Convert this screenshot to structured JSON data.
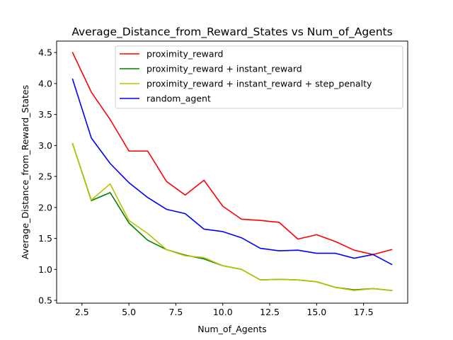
{
  "chart_data": {
    "type": "line",
    "title": "Average_Distance_from_Reward_States vs Num_of_Agents",
    "xlabel": "Num_of_Agents",
    "ylabel": "Average_Distance_from_Reward_States",
    "xlim": [
      1.15,
      19.85
    ],
    "ylim": [
      0.455,
      4.685
    ],
    "x_ticks": [
      2.5,
      5.0,
      7.5,
      10.0,
      12.5,
      15.0,
      17.5
    ],
    "x_tick_labels": [
      "2.5",
      "5.0",
      "7.5",
      "10.0",
      "12.5",
      "15.0",
      "17.5"
    ],
    "y_ticks": [
      0.5,
      1.0,
      1.5,
      2.0,
      2.5,
      3.0,
      3.5,
      4.0,
      4.5
    ],
    "y_tick_labels": [
      "0.5",
      "1.0",
      "1.5",
      "2.0",
      "2.5",
      "3.0",
      "3.5",
      "4.0",
      "4.5"
    ],
    "grid": false,
    "legend_position": "top-right",
    "x": [
      2,
      3,
      4,
      5,
      6,
      7,
      8,
      9,
      10,
      11,
      12,
      13,
      14,
      15,
      16,
      17,
      18,
      19
    ],
    "series": [
      {
        "name": "proximity_reward",
        "color": "#ff0000",
        "values": [
          4.5,
          3.86,
          3.42,
          2.91,
          2.91,
          2.42,
          2.2,
          2.44,
          2.02,
          1.81,
          1.79,
          1.76,
          1.49,
          1.56,
          1.45,
          1.31,
          1.24,
          1.32
        ]
      },
      {
        "name": "proximity_reward + instant_reward",
        "color": "#008000",
        "values": [
          3.03,
          2.11,
          2.24,
          1.75,
          1.47,
          1.32,
          1.23,
          1.17,
          1.06,
          1.0,
          0.83,
          0.84,
          0.83,
          0.8,
          0.71,
          0.67,
          0.69,
          0.66
        ]
      },
      {
        "name": "proximity_reward + instant_reward + step_penalty",
        "color": "#bfbf00",
        "values": [
          3.03,
          2.12,
          2.38,
          1.79,
          1.58,
          1.32,
          1.22,
          1.19,
          1.06,
          1.0,
          0.83,
          0.84,
          0.83,
          0.8,
          0.71,
          0.66,
          0.69,
          0.66
        ]
      },
      {
        "name": "random_agent",
        "color": "#0000ff",
        "values": [
          4.07,
          3.12,
          2.71,
          2.4,
          2.16,
          1.97,
          1.9,
          1.65,
          1.61,
          1.51,
          1.34,
          1.3,
          1.31,
          1.26,
          1.26,
          1.18,
          1.24,
          1.08
        ]
      }
    ]
  }
}
